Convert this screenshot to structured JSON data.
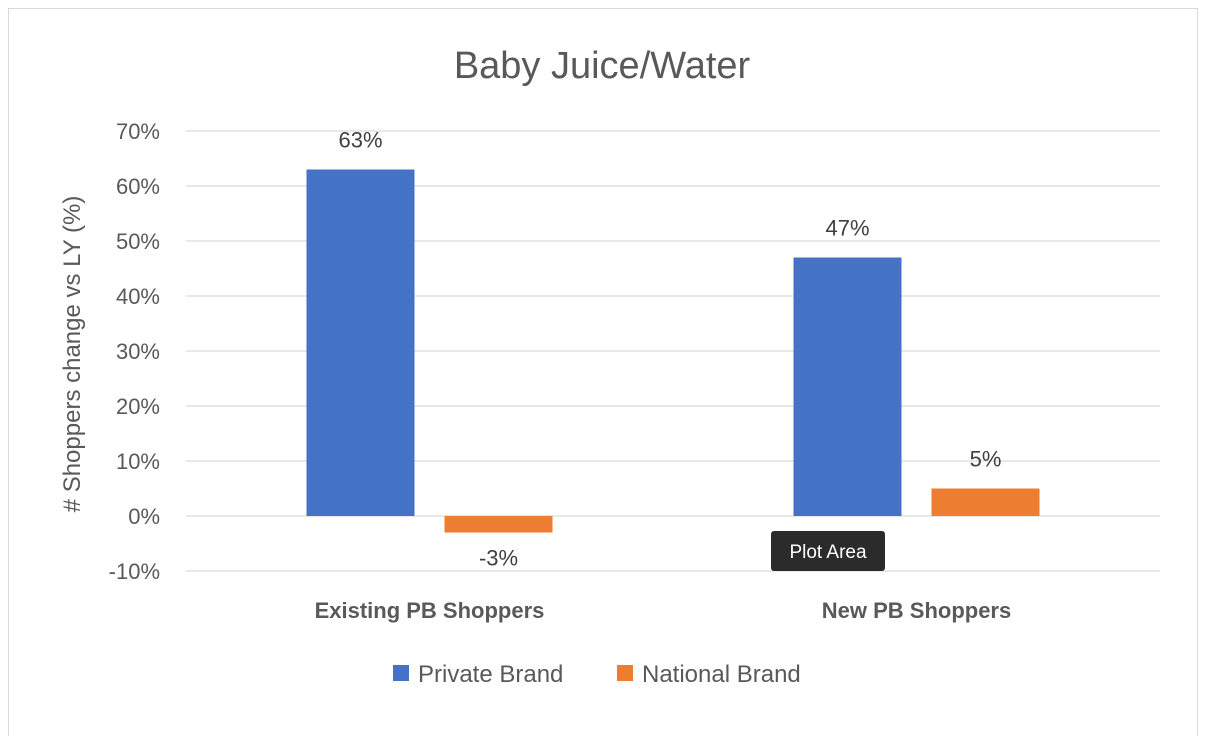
{
  "chart_data": {
    "type": "bar",
    "title": "Baby Juice/Water",
    "xlabel": "",
    "ylabel": "# Shoppers change vs LY (%)",
    "categories": [
      "Existing PB Shoppers",
      "New PB Shoppers"
    ],
    "series": [
      {
        "name": "Private Brand",
        "color": "#4472C4",
        "values": [
          63,
          47
        ],
        "labels": [
          "63%",
          "47%"
        ]
      },
      {
        "name": "National Brand",
        "color": "#ED7D31",
        "values": [
          -3,
          5
        ],
        "labels": [
          "-3%",
          "5%"
        ]
      }
    ],
    "ylim": [
      -10,
      70
    ],
    "yticks": [
      -10,
      0,
      10,
      20,
      30,
      40,
      50,
      60,
      70
    ],
    "ytick_labels": [
      "-10%",
      "0%",
      "10%",
      "20%",
      "30%",
      "40%",
      "50%",
      "60%",
      "70%"
    ],
    "grid": true,
    "legend_position": "bottom"
  },
  "tooltip": {
    "text": "Plot Area"
  }
}
